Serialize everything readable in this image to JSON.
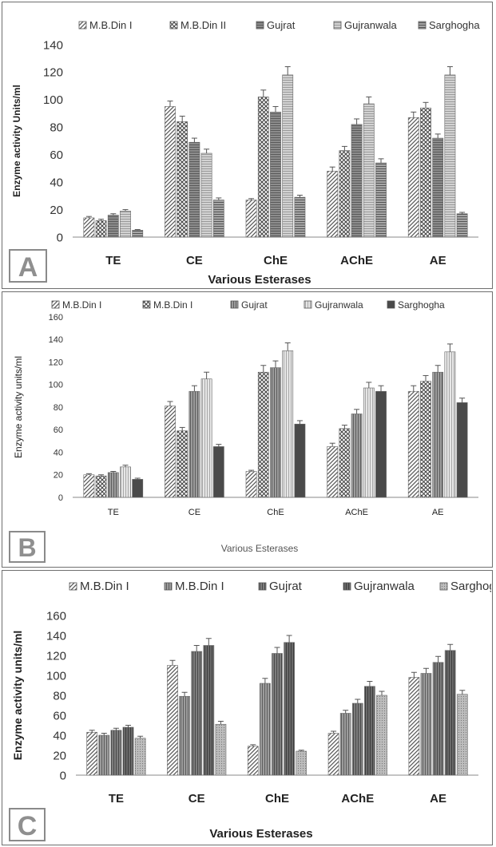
{
  "panels": [
    {
      "letter": "A",
      "chart_data": {
        "type": "bar",
        "title": "",
        "xlabel": "Various Esterases",
        "ylabel": "Enzyme activity Units/ml",
        "categories": [
          "TE",
          "CE",
          "ChE",
          "AChE",
          "AE"
        ],
        "ylim": [
          0,
          140
        ],
        "yticks": [
          0,
          20,
          40,
          60,
          80,
          100,
          120,
          140
        ],
        "legend_position": "top",
        "grid": false,
        "error_bars": true,
        "series": [
          {
            "name": "M.B.Din I",
            "pattern": "diag",
            "values": [
              14,
              95,
              27,
              48,
              87
            ],
            "errors": [
              1,
              4,
              1,
              3,
              4
            ]
          },
          {
            "name": "M.B.Din II",
            "pattern": "cross",
            "values": [
              12,
              84,
              102,
              63,
              94
            ],
            "errors": [
              1,
              4,
              5,
              3,
              4
            ]
          },
          {
            "name": "Gujrat",
            "pattern": "dark-hlines",
            "values": [
              16,
              69,
              91,
              82,
              72
            ],
            "errors": [
              1,
              3,
              4,
              4,
              3
            ]
          },
          {
            "name": "Gujranwala",
            "pattern": "light-hlines",
            "values": [
              19,
              61,
              118,
              97,
              118
            ],
            "errors": [
              1,
              3,
              6,
              5,
              6
            ]
          },
          {
            "name": "Sarghogha",
            "pattern": "mid-hlines",
            "values": [
              5,
              27,
              29,
              54,
              17
            ],
            "errors": [
              0.5,
              1.5,
              1.5,
              3,
              1
            ]
          }
        ]
      }
    },
    {
      "letter": "B",
      "chart_data": {
        "type": "bar",
        "title": "",
        "xlabel": "Various Esterases",
        "ylabel": "Enzyme activity units/ml",
        "categories": [
          "TE",
          "CE",
          "ChE",
          "AChE",
          "AE"
        ],
        "ylim": [
          0,
          160
        ],
        "yticks": [
          0,
          20,
          40,
          60,
          80,
          100,
          120,
          140,
          160
        ],
        "legend_position": "top",
        "grid": false,
        "error_bars": true,
        "series": [
          {
            "name": "M.B.Din I",
            "pattern": "diag",
            "values": [
              20,
              81,
              23,
              45,
              94
            ],
            "errors": [
              1,
              4,
              1,
              3,
              5
            ]
          },
          {
            "name": "M.B.Din I",
            "pattern": "cross",
            "values": [
              19,
              59,
              111,
              61,
              103
            ],
            "errors": [
              1,
              3,
              6,
              3,
              5
            ]
          },
          {
            "name": "Gujrat",
            "pattern": "vlines",
            "values": [
              22,
              94,
              115,
              74,
              111
            ],
            "errors": [
              1,
              5,
              6,
              4,
              6
            ]
          },
          {
            "name": "Gujranwala",
            "pattern": "light-vlines",
            "values": [
              27,
              105,
              130,
              97,
              129
            ],
            "errors": [
              1.5,
              6,
              7,
              5,
              7
            ]
          },
          {
            "name": "Sarghogha",
            "pattern": "solid-dark",
            "values": [
              16,
              45,
              65,
              94,
              84
            ],
            "errors": [
              1,
              2,
              3,
              5,
              4
            ]
          }
        ]
      }
    },
    {
      "letter": "C",
      "chart_data": {
        "type": "bar",
        "title": "",
        "xlabel": "Various Esterases",
        "ylabel": "Enzyme activity units/ml",
        "categories": [
          "TE",
          "CE",
          "ChE",
          "AChE",
          "AE"
        ],
        "ylim": [
          0,
          160
        ],
        "yticks": [
          0,
          20,
          40,
          60,
          80,
          100,
          120,
          140,
          160
        ],
        "legend_position": "top",
        "grid": false,
        "error_bars": true,
        "series": [
          {
            "name": "M.B.Din I",
            "pattern": "diag",
            "values": [
              43,
              110,
              29,
              42,
              98
            ],
            "errors": [
              2,
              5,
              1.5,
              2,
              5
            ]
          },
          {
            "name": "M.B.Din I",
            "pattern": "vlines",
            "values": [
              40,
              79,
              92,
              62,
              102
            ],
            "errors": [
              2,
              4,
              5,
              3,
              5
            ]
          },
          {
            "name": "Gujrat",
            "pattern": "dark-vlines",
            "values": [
              45,
              124,
              122,
              72,
              113
            ],
            "errors": [
              2,
              6,
              6,
              4,
              6
            ]
          },
          {
            "name": "Gujranwala",
            "pattern": "darker-vlines",
            "values": [
              48,
              130,
              133,
              89,
              125
            ],
            "errors": [
              2,
              7,
              7,
              5,
              6
            ]
          },
          {
            "name": "Sarghogha",
            "pattern": "dots",
            "values": [
              37,
              51,
              24,
              80,
              81
            ],
            "errors": [
              2,
              3,
              1,
              4,
              4
            ]
          }
        ]
      }
    }
  ]
}
